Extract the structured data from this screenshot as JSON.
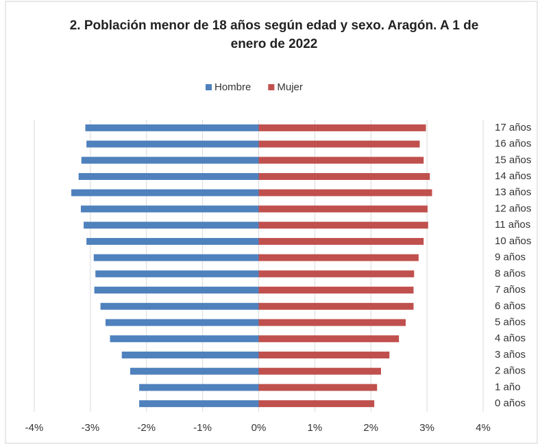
{
  "chart_data": {
    "type": "bar",
    "orientation": "horizontal",
    "title": "2. Población menor de 18 años según edad y sexo. Aragón. A 1 de enero de 2022",
    "categories": [
      "0 años",
      "1 año",
      "2 años",
      "3 años",
      "4 años",
      "5 años",
      "6 años",
      "7 años",
      "8 años",
      "9 años",
      "10 años",
      "11 años",
      "12 años",
      "13 años",
      "14 años",
      "15 años",
      "16 años",
      "17 años"
    ],
    "series": [
      {
        "name": "Hombre",
        "color": "#4f81bd",
        "values": [
          -2.13,
          -2.13,
          -2.29,
          -2.44,
          -2.65,
          -2.73,
          -2.82,
          -2.93,
          -2.91,
          -2.94,
          -3.07,
          -3.12,
          -3.17,
          -3.34,
          -3.21,
          -3.16,
          -3.07,
          -3.09
        ]
      },
      {
        "name": "Mujer",
        "color": "#c0504d",
        "values": [
          2.06,
          2.11,
          2.18,
          2.33,
          2.5,
          2.62,
          2.76,
          2.76,
          2.77,
          2.85,
          2.94,
          3.02,
          3.01,
          3.09,
          3.05,
          2.94,
          2.87,
          2.98
        ]
      }
    ],
    "xlim": [
      -4,
      4
    ],
    "xticks": [
      {
        "value": -4,
        "label": "-4%"
      },
      {
        "value": -3,
        "label": "-3%"
      },
      {
        "value": -2,
        "label": "-2%"
      },
      {
        "value": -1,
        "label": "-1%"
      },
      {
        "value": 0,
        "label": "0%"
      },
      {
        "value": 1,
        "label": "1%"
      },
      {
        "value": 2,
        "label": "2%"
      },
      {
        "value": 3,
        "label": "3%"
      },
      {
        "value": 4,
        "label": "4%"
      }
    ],
    "grid": true,
    "legend": "top"
  }
}
